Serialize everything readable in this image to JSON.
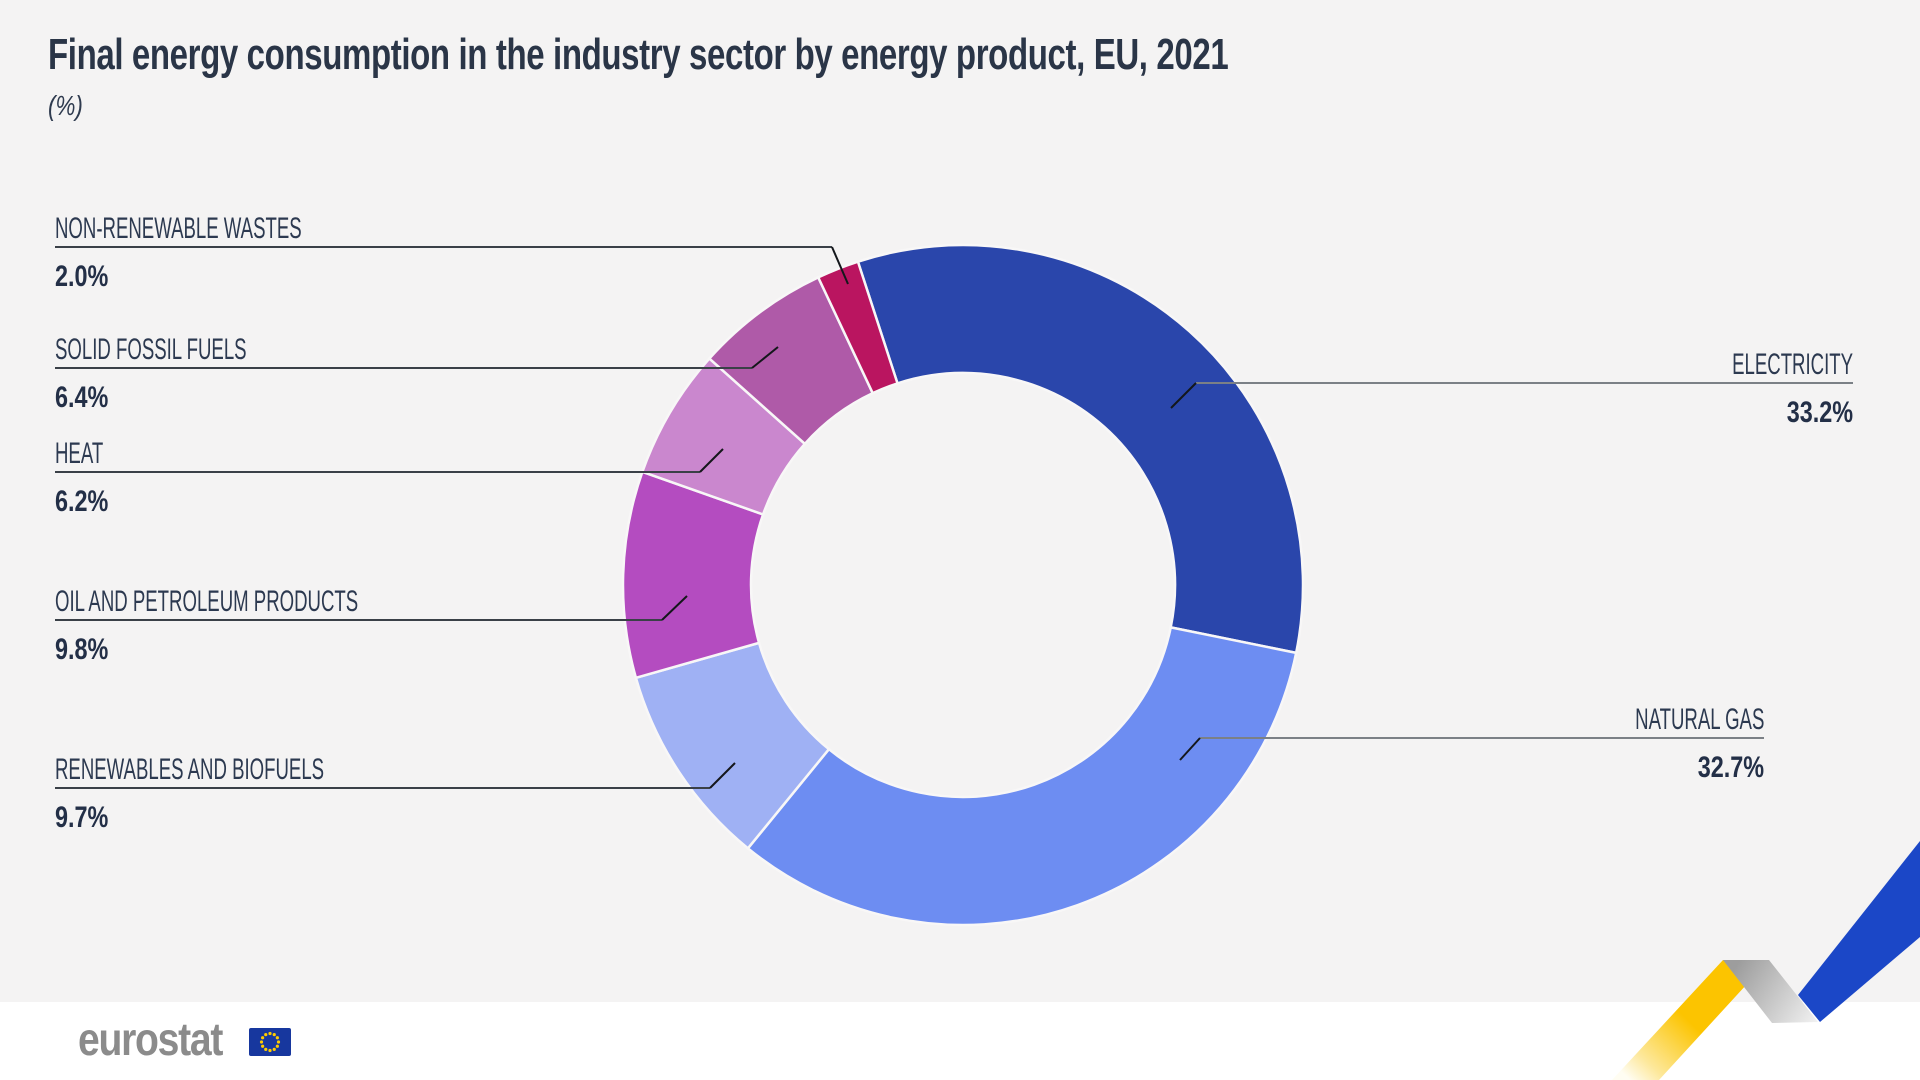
{
  "title": "Final energy consumption in the industry sector by energy product, EU, 2021",
  "subtitle": "(%)",
  "footer": {
    "logo_text": "eurostat"
  },
  "colors": {
    "background": "#f4f3f3",
    "footer_background": "#ffffff",
    "title_text": "#2a3547",
    "label_text": "#2c3950",
    "value_text": "#232f47",
    "leader_line_left": "#3a4047",
    "leader_line_right": "#7b8086",
    "leader_diagonal": "#14171b",
    "slice_separator": "#f8f7f7",
    "eu_flag_blue": "#17379e",
    "eu_star_yellow": "#ffcc00",
    "logo_gray": "#8b8b8b",
    "ribbon_yellow": "#fcc400",
    "ribbon_gray": "#a0a0a0",
    "ribbon_blue": "#1b47c7"
  },
  "chart_data": {
    "type": "pie",
    "variant": "donut",
    "title": "Final energy consumption in the industry sector by energy product, EU, 2021",
    "unit": "%",
    "start_angle_deg": -108,
    "direction": "clockwise",
    "slices": [
      {
        "label": "ELECTRICITY",
        "value": 33.2,
        "value_label": "33.2%",
        "color": "#2a46ab"
      },
      {
        "label": "NATURAL GAS",
        "value": 32.7,
        "value_label": "32.7%",
        "color": "#6d8df2"
      },
      {
        "label": "RENEWABLES AND BIOFUELS",
        "value": 9.7,
        "value_label": "9.7%",
        "color": "#9fb1f4"
      },
      {
        "label": "OIL AND PETROLEUM PRODUCTS",
        "value": 9.8,
        "value_label": "9.8%",
        "color": "#b44cc0"
      },
      {
        "label": "HEAT",
        "value": 6.2,
        "value_label": "6.2%",
        "color": "#ca87ce"
      },
      {
        "label": "SOLID FOSSIL FUELS",
        "value": 6.4,
        "value_label": "6.4%",
        "color": "#af5aa8"
      },
      {
        "label": "NON-RENEWABLE WASTES",
        "value": 2.0,
        "value_label": "2.0%",
        "color": "#ba1560"
      }
    ]
  }
}
